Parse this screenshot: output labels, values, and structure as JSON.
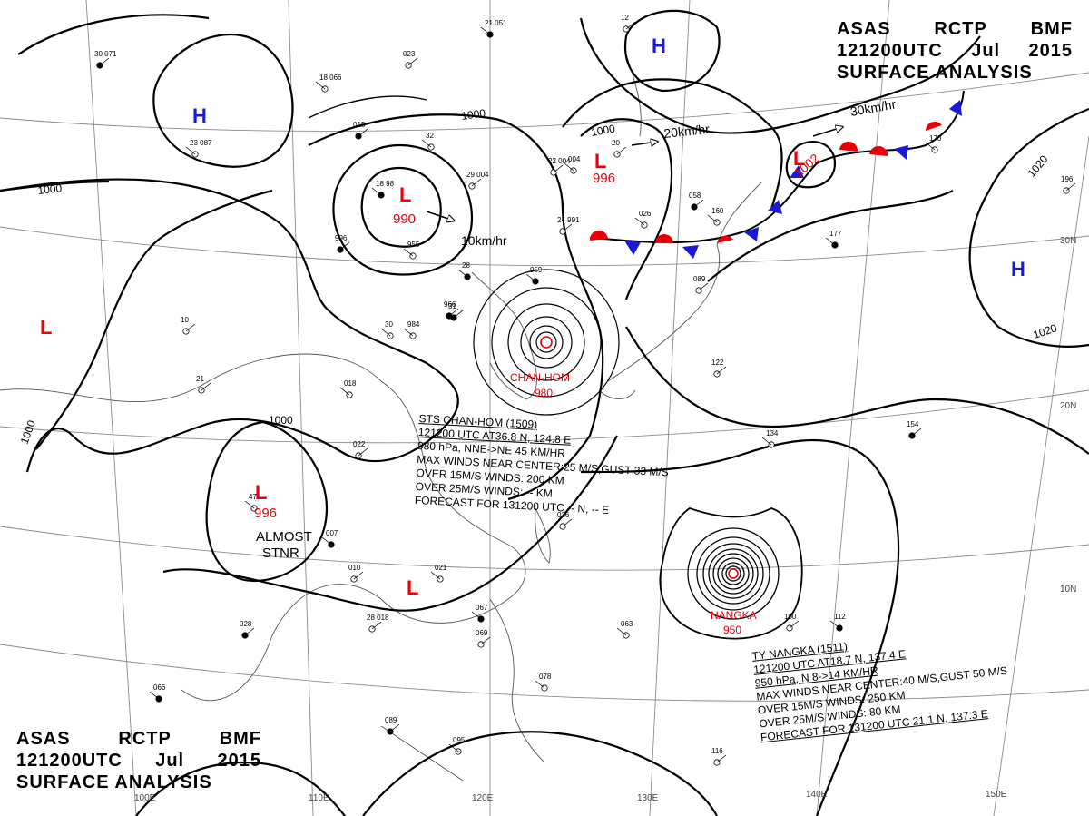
{
  "title": {
    "line1": [
      "ASAS",
      "RCTP",
      "BMF"
    ],
    "line2": [
      "121200UTC",
      "Jul",
      "2015"
    ],
    "line3": "SURFACE ANALYSIS"
  },
  "colors": {
    "low": "#e8000b",
    "high": "#1a1ad6",
    "warm_front": "#e8000b",
    "cold_front": "#1a1ad6",
    "isobar": "#000000",
    "grid": "#8a8a8a"
  },
  "longitude_labels": [
    "100E",
    "110E",
    "120E",
    "130E",
    "140E",
    "150E"
  ],
  "latitude_labels": [
    "30N",
    "20N",
    "10N"
  ],
  "isobar_labels": [
    "1000",
    "1000",
    "1000",
    "1000",
    "1000",
    "1020",
    "1020"
  ],
  "pressure_systems": [
    {
      "symbol": "L",
      "value": "990"
    },
    {
      "symbol": "L",
      "value": "996"
    },
    {
      "symbol": "L",
      "value": "1002"
    },
    {
      "symbol": "L",
      "value": "996"
    },
    {
      "symbol": "L",
      "value": ""
    },
    {
      "symbol": "L",
      "value": ""
    },
    {
      "symbol": "H",
      "value": ""
    },
    {
      "symbol": "H",
      "value": ""
    },
    {
      "symbol": "H",
      "value": ""
    }
  ],
  "motion_labels": [
    "10km/hr",
    "20km/hr",
    "30km/hr"
  ],
  "stationary_note": [
    "ALMOST",
    "STNR"
  ],
  "typhoons": [
    {
      "name": "CHAN-HOM",
      "pressure": "980"
    },
    {
      "name": "NANGKA",
      "pressure": "950"
    }
  ],
  "chanhom_info": [
    "STS  CHAN-HOM  (1509)",
    "121200 UTC  AT36.8 N, 124.8 E",
    "980 hPa, NNE->NE  45 KM/HR",
    "MAX WINDS NEAR CENTER:25 M/S,GUST 33 M/S",
    "OVER 15M/S WINDS: 200 KM",
    "OVER 25M/S WINDS: -- KM",
    "FORECAST FOR 131200 UTC -- N, -- E"
  ],
  "nangka_info": [
    "TY  NANGKA  (1511)",
    "121200 UTC  AT18.7 N, 137.4 E",
    "950 hPa, N  8->14 KM/HR",
    "MAX WINDS NEAR CENTER:40 M/S,GUST 50 M/S",
    "OVER 15M/S WINDS: 250 KM",
    "OVER 25M/S WINDS: 80 KM",
    "FORECAST FOR 131200 UTC 21.1 N, 137.3 E"
  ],
  "station_labels": [
    "30  071",
    "18  066",
    "023",
    "21  051",
    "12",
    "23  087",
    "015",
    "32",
    "20",
    "18  98",
    "22  004",
    "004",
    "996",
    "955",
    "29  004",
    "959",
    "24  991",
    "984",
    "966",
    "018",
    "10",
    "28",
    "21",
    "30",
    "31",
    "47",
    "022",
    "007",
    "010",
    "021",
    "028",
    "063",
    "100",
    "112",
    "122",
    "134",
    "154",
    "170",
    "196",
    "177",
    "089",
    "160",
    "058",
    "026",
    "036",
    "067",
    "069",
    "078",
    "089",
    "095",
    "116",
    "066",
    "28  018"
  ]
}
